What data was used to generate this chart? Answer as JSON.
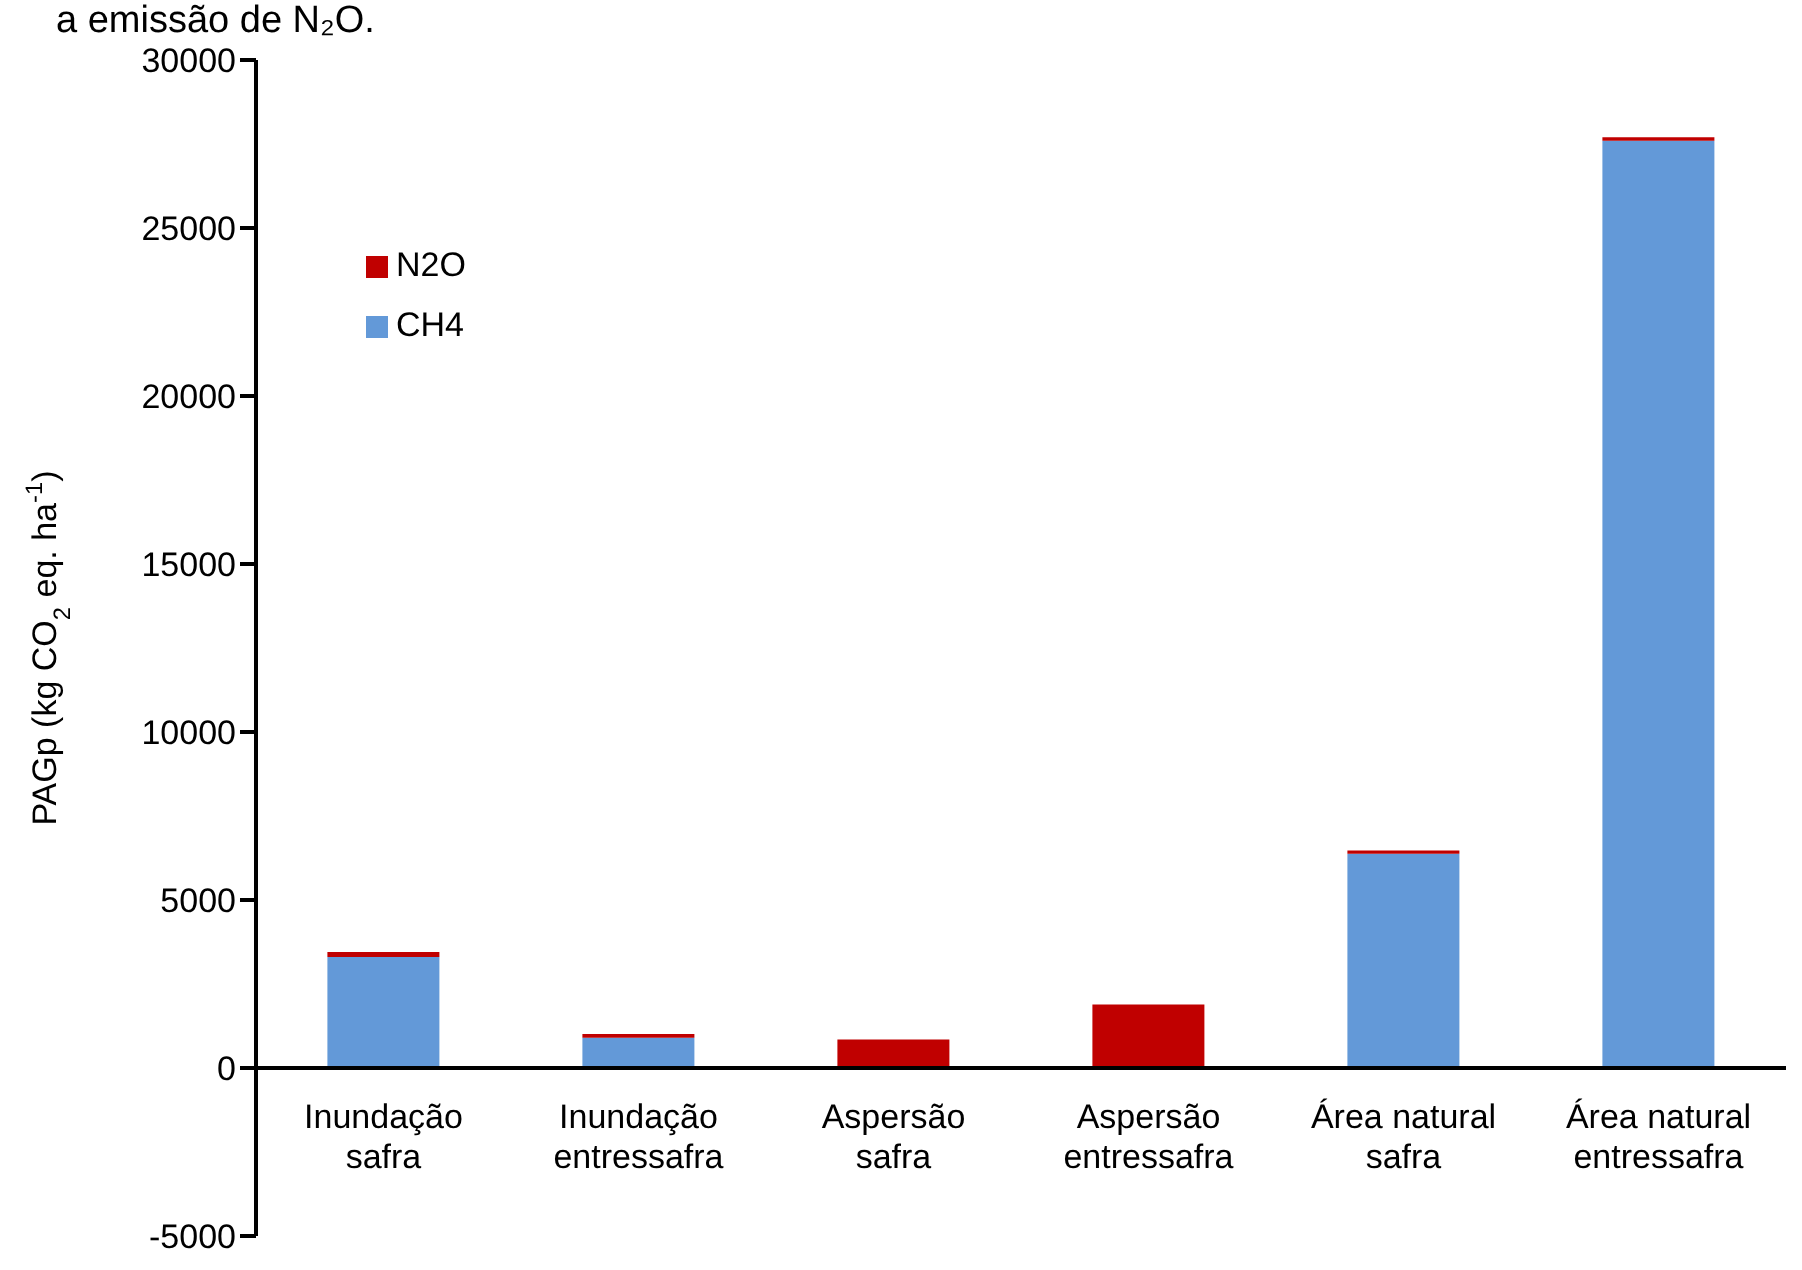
{
  "chart_data": {
    "type": "bar",
    "stacked": true,
    "ylabel": "PAGp (kg CO$_{2}$ eq. ha$^{-1}$)",
    "annotations": [
      "a emissão de N₂O."
    ],
    "categories": [
      "Inundação safra",
      "Inundação entressafra",
      "Aspersão safra",
      "Aspersão entressafra",
      "Área natural safra",
      "Área natural entressafra"
    ],
    "series": [
      {
        "name": "CH4",
        "color": "#6399d8",
        "values": [
          3300,
          900,
          0,
          0,
          6380,
          27600
        ]
      },
      {
        "name": "N2O",
        "color": "#c00000",
        "values": [
          150,
          110,
          850,
          1890,
          90,
          100
        ]
      }
    ],
    "ylim": [
      -5000,
      30000
    ],
    "yticks": [
      -5000,
      0,
      5000,
      10000,
      15000,
      20000,
      25000,
      30000
    ],
    "legend": "top left"
  }
}
